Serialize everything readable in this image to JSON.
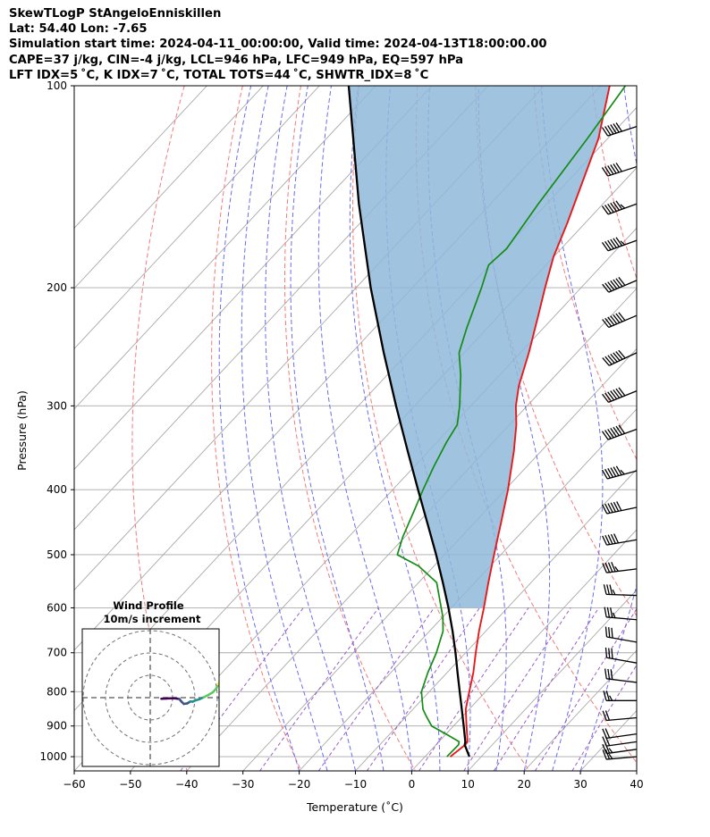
{
  "header": {
    "line1": "SkewTLogP StAngeloEnniskillen",
    "line2": "Lat: 54.40   Lon: -7.65",
    "line3": "Simulation start time: 2024-04-11_00:00:00, Valid time: 2024-04-13T18:00:00.00",
    "line4": "CAPE=37 j/kg, CIN=-4 j/kg, LCL=946 hPa, LFC=949 hPa, EQ=597 hPa",
    "line5": "LFT IDX=5 ˚C, K IDX=7 ˚C, TOTAL TOTS=44 ˚C, SHWTR_IDX=8 ˚C"
  },
  "chart_data": {
    "type": "line",
    "chart_kind": "skew-T log-P",
    "xlabel": "Temperature (˚C)",
    "ylabel": "Pressure (hPa)",
    "xlim": [
      -60,
      40
    ],
    "ylim": [
      1050,
      100
    ],
    "y_scale": "log",
    "x_ticks": [
      -60,
      -50,
      -40,
      -30,
      -20,
      -10,
      0,
      10,
      20,
      30,
      40
    ],
    "x_tick_labels": [
      "−60",
      "−50",
      "−40",
      "−30",
      "−20",
      "−10",
      "0",
      "10",
      "20",
      "30",
      "40"
    ],
    "y_ticks": [
      1000,
      900,
      800,
      700,
      600,
      500,
      400,
      300,
      200,
      100
    ],
    "y_tick_labels": [
      "1000",
      "900",
      "800",
      "700",
      "600",
      "500",
      "400",
      "300",
      "200",
      "100"
    ],
    "grid": true,
    "skew_isotherms": [
      -150,
      -140,
      -130,
      -120,
      -110,
      -100,
      -90,
      -80,
      -70,
      -60,
      -50,
      -40,
      -30,
      -20,
      -10,
      0,
      10,
      20,
      30,
      40
    ],
    "dry_adiabats_K": [
      230,
      250,
      270,
      290,
      310,
      330,
      350,
      370,
      390,
      410,
      430
    ],
    "moist_adiabats_start_C": [
      -20,
      -15,
      -10,
      -5,
      0,
      5,
      10,
      15,
      20,
      25,
      30
    ],
    "mixing_ratio_lines_gkg": [
      0.1,
      0.4,
      1,
      2,
      4,
      7,
      10,
      16,
      24
    ],
    "colors": {
      "temperature": "#e8191a",
      "dewpoint": "#158c15",
      "parcel": "#000000",
      "cape_fill": "#8fb9d9",
      "dry_adiabat": "#f37a7a",
      "moist_adiabat": "#6b6bf0",
      "mixing_ratio": "#9a5cc7",
      "isotherm": "#a9a9a9"
    },
    "series": [
      {
        "points": [
          {
            "p": 1000,
            "t": 4.5
          },
          {
            "p": 960,
            "t": 5.2
          },
          {
            "p": 950,
            "t": 5.1
          },
          {
            "p": 900,
            "t": 2.3
          },
          {
            "p": 850,
            "t": -0.6
          },
          {
            "p": 800,
            "t": -2.9
          },
          {
            "p": 750,
            "t": -5.3
          },
          {
            "p": 700,
            "t": -8.2
          },
          {
            "p": 650,
            "t": -11.2
          },
          {
            "p": 600,
            "t": -14.2
          },
          {
            "p": 550,
            "t": -17.6
          },
          {
            "p": 500,
            "t": -21.2
          },
          {
            "p": 450,
            "t": -25.1
          },
          {
            "p": 400,
            "t": -29.5
          },
          {
            "p": 350,
            "t": -34.9
          },
          {
            "p": 320,
            "t": -38.8
          },
          {
            "p": 300,
            "t": -42.0
          },
          {
            "p": 280,
            "t": -44.8
          },
          {
            "p": 250,
            "t": -48.5
          },
          {
            "p": 220,
            "t": -53.0
          },
          {
            "p": 200,
            "t": -56.4
          },
          {
            "p": 180,
            "t": -60.0
          },
          {
            "p": 160,
            "t": -63.2
          },
          {
            "p": 140,
            "t": -67.1
          },
          {
            "p": 120,
            "t": -71.6
          },
          {
            "p": 100,
            "t": -78.4
          }
        ]
      },
      {
        "points": [
          {
            "p": 1000,
            "t": 3.9
          },
          {
            "p": 960,
            "t": 4.0
          },
          {
            "p": 950,
            "t": 3.6
          },
          {
            "p": 930,
            "t": 0.7
          },
          {
            "p": 900,
            "t": -3.9
          },
          {
            "p": 870,
            "t": -6.5
          },
          {
            "p": 850,
            "t": -8.2
          },
          {
            "p": 800,
            "t": -11.4
          },
          {
            "p": 750,
            "t": -13.4
          },
          {
            "p": 700,
            "t": -15.2
          },
          {
            "p": 650,
            "t": -17.6
          },
          {
            "p": 620,
            "t": -19.9
          },
          {
            "p": 550,
            "t": -26.8
          },
          {
            "p": 520,
            "t": -32.7
          },
          {
            "p": 500,
            "t": -38.4
          },
          {
            "p": 470,
            "t": -40.4
          },
          {
            "p": 430,
            "t": -42.7
          },
          {
            "p": 400,
            "t": -44.6
          },
          {
            "p": 370,
            "t": -46.5
          },
          {
            "p": 340,
            "t": -48.3
          },
          {
            "p": 320,
            "t": -49.3
          },
          {
            "p": 300,
            "t": -52.0
          },
          {
            "p": 270,
            "t": -56.9
          },
          {
            "p": 250,
            "t": -60.9
          },
          {
            "p": 230,
            "t": -63.6
          },
          {
            "p": 200,
            "t": -67.7
          },
          {
            "p": 185,
            "t": -70.2
          },
          {
            "p": 175,
            "t": -69.7
          },
          {
            "p": 150,
            "t": -71.5
          },
          {
            "p": 120,
            "t": -73.6
          },
          {
            "p": 100,
            "t": -75.6
          }
        ]
      },
      {
        "points": [
          {
            "p": 1000,
            "t": 7.9
          },
          {
            "p": 960,
            "t": 5.1
          },
          {
            "p": 950,
            "t": 4.7
          },
          {
            "p": 900,
            "t": 1.8
          },
          {
            "p": 850,
            "t": -1.3
          },
          {
            "p": 800,
            "t": -4.6
          },
          {
            "p": 750,
            "t": -8.1
          },
          {
            "p": 700,
            "t": -11.8
          },
          {
            "p": 650,
            "t": -15.9
          },
          {
            "p": 600,
            "t": -20.5
          },
          {
            "p": 550,
            "t": -25.7
          },
          {
            "p": 500,
            "t": -31.5
          },
          {
            "p": 450,
            "t": -38.1
          },
          {
            "p": 400,
            "t": -45.5
          },
          {
            "p": 350,
            "t": -53.8
          },
          {
            "p": 300,
            "t": -63.3
          },
          {
            "p": 250,
            "t": -74.3
          },
          {
            "p": 200,
            "t": -87.4
          },
          {
            "p": 150,
            "t": -103.4
          },
          {
            "p": 100,
            "t": -124.8
          }
        ]
      }
    ],
    "wind_barbs": [
      {
        "p": 1000,
        "dir": 265,
        "kt": 25
      },
      {
        "p": 975,
        "dir": 262,
        "kt": 25
      },
      {
        "p": 950,
        "dir": 262,
        "kt": 20
      },
      {
        "p": 925,
        "dir": 262,
        "kt": 20
      },
      {
        "p": 875,
        "dir": 265,
        "kt": 20
      },
      {
        "p": 825,
        "dir": 270,
        "kt": 25
      },
      {
        "p": 775,
        "dir": 277,
        "kt": 30
      },
      {
        "p": 725,
        "dir": 280,
        "kt": 30
      },
      {
        "p": 675,
        "dir": 280,
        "kt": 30
      },
      {
        "p": 625,
        "dir": 275,
        "kt": 35
      },
      {
        "p": 575,
        "dir": 272,
        "kt": 35
      },
      {
        "p": 525,
        "dir": 263,
        "kt": 45
      },
      {
        "p": 475,
        "dir": 260,
        "kt": 50
      },
      {
        "p": 425,
        "dir": 258,
        "kt": 60
      },
      {
        "p": 375,
        "dir": 255,
        "kt": 65
      },
      {
        "p": 325,
        "dir": 250,
        "kt": 70
      },
      {
        "p": 285,
        "dir": 248,
        "kt": 70
      },
      {
        "p": 250,
        "dir": 245,
        "kt": 70
      },
      {
        "p": 220,
        "dir": 247,
        "kt": 70
      },
      {
        "p": 195,
        "dir": 247,
        "kt": 70
      },
      {
        "p": 170,
        "dir": 250,
        "kt": 65
      },
      {
        "p": 150,
        "dir": 250,
        "kt": 65
      },
      {
        "p": 132,
        "dir": 252,
        "kt": 60
      },
      {
        "p": 115,
        "dir": 252,
        "kt": 60
      }
    ],
    "hodograph": {
      "title": "Wind Profile",
      "subtitle": "10m/s increment",
      "rings_ms": [
        10,
        20,
        30
      ],
      "colormap": [
        "#440154",
        "#3b528b",
        "#21918c",
        "#5ec962",
        "#fde725"
      ],
      "points": [
        {
          "u": 5.0,
          "v": -0.5
        },
        {
          "u": 7.0,
          "v": -0.4
        },
        {
          "u": 9.0,
          "v": -0.3
        },
        {
          "u": 11.0,
          "v": -0.3
        },
        {
          "u": 13.0,
          "v": -0.6
        },
        {
          "u": 14.0,
          "v": -1.8
        },
        {
          "u": 15.0,
          "v": -2.8
        },
        {
          "u": 16.5,
          "v": -2.6
        },
        {
          "u": 18.0,
          "v": -1.7
        },
        {
          "u": 19.0,
          "v": -1.8
        },
        {
          "u": 20.0,
          "v": -1.3
        },
        {
          "u": 22.0,
          "v": -0.7
        },
        {
          "u": 24.0,
          "v": 0.2
        },
        {
          "u": 26.0,
          "v": 1.2
        },
        {
          "u": 28.0,
          "v": 2.4
        },
        {
          "u": 29.5,
          "v": 4.0
        },
        {
          "u": 30.5,
          "v": 6.0
        },
        {
          "u": 31.5,
          "v": 8.0
        },
        {
          "u": 32.0,
          "v": 10.0
        },
        {
          "u": 32.5,
          "v": 12.0
        },
        {
          "u": 33.0,
          "v": 14.0
        }
      ]
    }
  }
}
